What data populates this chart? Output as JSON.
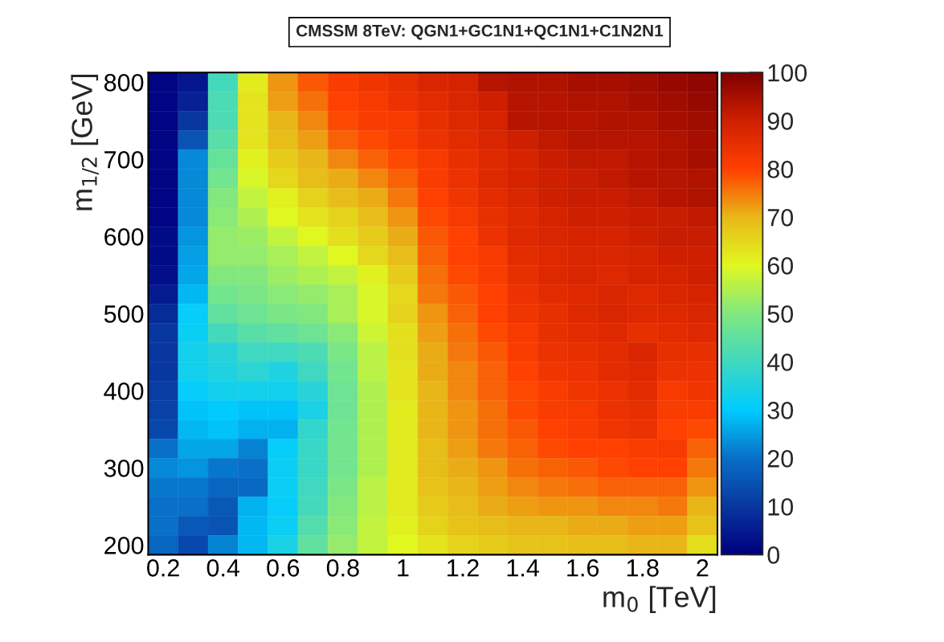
{
  "chart_data": {
    "type": "heatmap",
    "title": "CMSSM 8TeV: QGN1+GC1N1+QC1N1+C1N2N1",
    "xlabel": "m$_{0}$ [TeV]",
    "ylabel": "m$_{1/2}$ [GeV]",
    "x": [
      0.2,
      0.3,
      0.4,
      0.5,
      0.6,
      0.7,
      0.8,
      0.9,
      1.0,
      1.1,
      1.2,
      1.3,
      1.4,
      1.5,
      1.6,
      1.7,
      1.8,
      1.9,
      2.0
    ],
    "y": [
      800,
      775,
      750,
      725,
      700,
      675,
      650,
      625,
      600,
      575,
      550,
      525,
      500,
      475,
      450,
      425,
      400,
      375,
      350,
      325,
      300,
      275,
      250,
      225,
      200
    ],
    "xlim": [
      0.15,
      2.05
    ],
    "ylim": [
      187.5,
      812.5
    ],
    "xticks": [
      0.2,
      0.4,
      0.6,
      0.8,
      1,
      1.2,
      1.4,
      1.6,
      1.8,
      2
    ],
    "yticks": [
      200,
      300,
      400,
      500,
      600,
      700,
      800
    ],
    "clim": [
      0,
      100
    ],
    "cticks": [
      0,
      10,
      20,
      30,
      40,
      50,
      60,
      70,
      80,
      90,
      100
    ],
    "cells": [
      [
        1,
        4,
        41,
        62,
        73,
        78,
        81,
        83,
        85,
        88,
        89,
        93,
        94,
        94,
        95,
        95,
        96,
        97,
        98
      ],
      [
        1,
        6,
        42,
        63,
        72,
        76,
        80,
        82,
        84,
        86,
        88,
        90,
        93,
        93,
        94,
        94,
        95,
        96,
        97
      ],
      [
        1,
        10,
        42,
        63,
        70,
        74,
        79,
        81,
        82,
        85,
        87,
        89,
        93,
        93,
        93,
        94,
        94,
        95,
        96
      ],
      [
        1,
        15,
        44,
        63,
        69,
        72,
        77,
        79,
        81,
        84,
        86,
        88,
        90,
        92,
        93,
        93,
        93,
        94,
        95
      ],
      [
        1,
        23,
        46,
        61,
        67,
        70,
        74,
        77,
        79,
        82,
        85,
        87,
        89,
        91,
        92,
        92,
        93,
        94,
        95
      ],
      [
        1,
        23,
        48,
        59,
        65,
        69,
        71,
        74,
        77,
        81,
        84,
        87,
        89,
        90,
        91,
        92,
        93,
        93,
        94
      ],
      [
        1,
        23,
        50,
        57,
        61,
        66,
        69,
        71,
        75,
        80,
        83,
        86,
        88,
        90,
        91,
        91,
        92,
        93,
        94
      ],
      [
        1,
        23,
        51,
        55,
        60,
        63,
        66,
        69,
        73,
        79,
        82,
        85,
        87,
        89,
        90,
        90,
        91,
        91,
        92
      ],
      [
        2,
        24,
        52,
        53,
        57,
        60,
        64,
        67,
        71,
        78,
        80,
        84,
        87,
        88,
        89,
        89,
        90,
        91,
        91
      ],
      [
        2,
        25,
        52,
        52,
        54,
        57,
        60,
        65,
        69,
        77,
        80,
        82,
        86,
        87,
        88,
        88,
        89,
        90,
        90
      ],
      [
        3,
        26,
        50,
        50,
        53,
        55,
        57,
        61,
        67,
        76,
        79,
        81,
        85,
        87,
        88,
        87,
        89,
        89,
        90
      ],
      [
        5,
        28,
        48,
        49,
        51,
        52,
        54,
        59,
        65,
        75,
        78,
        80,
        84,
        86,
        87,
        88,
        87,
        88,
        89
      ],
      [
        8,
        31,
        45,
        47,
        49,
        50,
        54,
        59,
        66,
        73,
        77,
        80,
        83,
        85,
        87,
        88,
        87,
        87,
        88
      ],
      [
        10,
        32,
        41,
        44,
        45,
        47,
        51,
        58,
        64,
        72,
        76,
        79,
        82,
        85,
        86,
        87,
        85,
        86,
        87
      ],
      [
        10,
        33,
        36,
        40,
        40,
        42,
        49,
        56,
        64,
        71,
        75,
        78,
        81,
        84,
        85,
        86,
        88,
        85,
        85
      ],
      [
        10,
        33,
        35,
        37,
        35,
        40,
        48,
        56,
        63,
        71,
        74,
        77,
        80,
        83,
        84,
        86,
        87,
        84,
        84
      ],
      [
        11,
        31,
        33,
        33,
        33,
        36,
        47,
        55,
        63,
        70,
        74,
        77,
        79,
        81,
        83,
        84,
        86,
        82,
        83
      ],
      [
        12,
        29,
        30,
        29,
        29,
        34,
        47,
        55,
        62,
        70,
        73,
        76,
        79,
        81,
        82,
        84,
        85,
        81,
        81
      ],
      [
        13,
        28,
        29,
        27,
        27,
        38,
        48,
        55,
        62,
        70,
        73,
        76,
        78,
        80,
        81,
        83,
        84,
        80,
        79
      ],
      [
        20,
        26,
        26,
        22,
        31,
        39,
        48,
        55,
        62,
        69,
        72,
        75,
        77,
        79,
        80,
        80,
        81,
        82,
        77
      ],
      [
        23,
        24,
        21,
        20,
        32,
        39,
        48,
        55,
        62,
        69,
        71,
        73,
        76,
        77,
        78,
        79,
        80,
        80,
        75
      ],
      [
        21,
        21,
        18,
        19,
        32,
        40,
        49,
        56,
        62,
        68,
        70,
        72,
        74,
        75,
        76,
        77,
        77,
        77,
        73
      ],
      [
        20,
        20,
        16,
        27,
        31,
        41,
        50,
        56,
        62,
        67,
        69,
        71,
        72,
        73,
        73,
        74,
        74,
        75,
        70
      ],
      [
        20,
        16,
        15,
        28,
        32,
        43,
        51,
        57,
        61,
        66,
        68,
        69,
        70,
        70,
        71,
        71,
        72,
        72,
        68
      ],
      [
        18,
        13,
        22,
        28,
        34,
        45,
        52,
        57,
        60,
        63,
        66,
        67,
        68,
        68,
        69,
        69,
        70,
        70,
        64
      ]
    ]
  }
}
